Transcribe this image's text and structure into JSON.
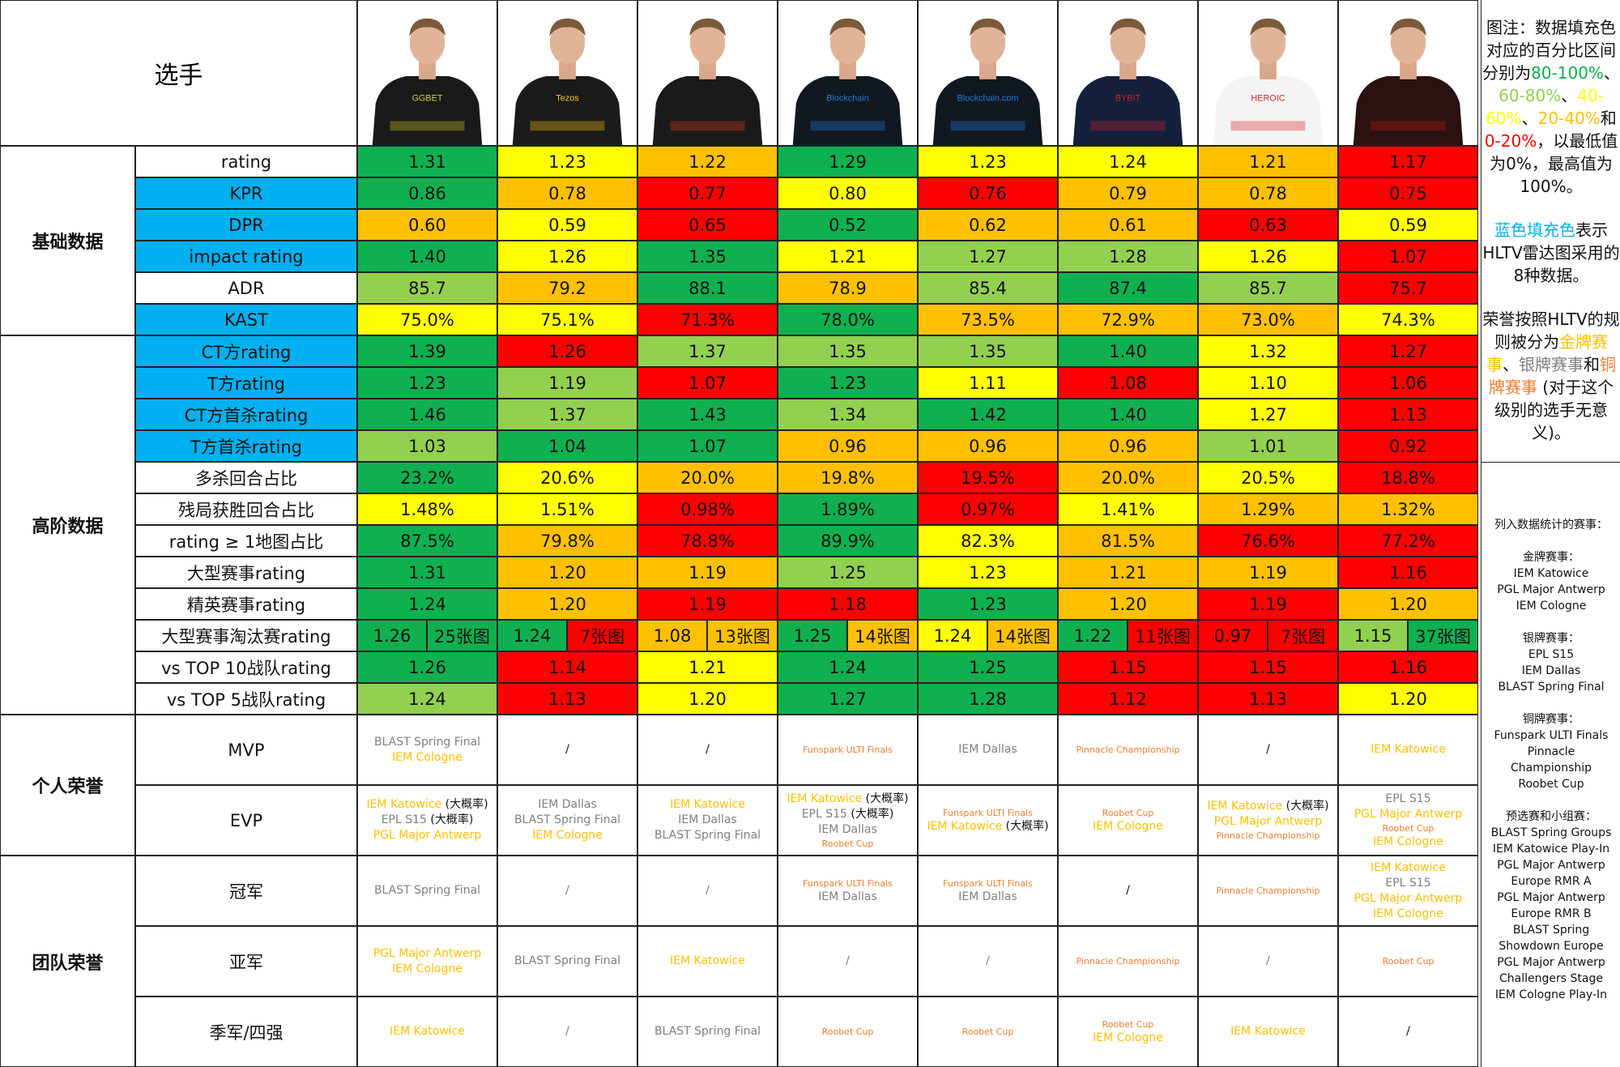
{
  "header": {
    "corner_label": "选手"
  },
  "colors": {
    "dark_green": "#0fb050",
    "light_green": "#92d050",
    "yellow": "#ffff00",
    "orange": "#ffc000",
    "red": "#ff0000",
    "blue": "#00b0f0",
    "gold": "#ffc000",
    "silver": "#808080",
    "bronze": "#ed7d31"
  },
  "players": [
    {
      "jersey": "#1a1a1a",
      "accent": "#c8d22c",
      "sponsor": "GGBET"
    },
    {
      "jersey": "#1a1a1a",
      "accent": "#f5c518",
      "sponsor": "Tezos"
    },
    {
      "jersey": "#1a1a1a",
      "accent": "#d9391e",
      "sponsor": ""
    },
    {
      "jersey": "#111822",
      "accent": "#1f7ad6",
      "sponsor": "Blockchain"
    },
    {
      "jersey": "#111822",
      "accent": "#1f7ad6",
      "sponsor": "Blockchain.com"
    },
    {
      "jersey": "#15203d",
      "accent": "#c8202a",
      "sponsor": "BYBIT"
    },
    {
      "jersey": "#f4f4f4",
      "accent": "#d42020",
      "sponsor": "HEROIC"
    },
    {
      "jersey": "#2a1212",
      "accent": "#c01818",
      "sponsor": ""
    }
  ],
  "groups": [
    {
      "label": "基础数据"
    },
    {
      "label": "高阶数据"
    },
    {
      "label": "个人荣誉"
    },
    {
      "label": "团队荣誉"
    }
  ],
  "metrics": [
    {
      "label": "rating",
      "blue": false,
      "values": [
        "1.31",
        "1.23",
        "1.22",
        "1.29",
        "1.23",
        "1.24",
        "1.21",
        "1.17"
      ],
      "tiers": [
        "dg",
        "y",
        "o",
        "dg",
        "y",
        "y",
        "o",
        "r"
      ]
    },
    {
      "label": "KPR",
      "blue": true,
      "values": [
        "0.86",
        "0.78",
        "0.77",
        "0.80",
        "0.76",
        "0.79",
        "0.78",
        "0.75"
      ],
      "tiers": [
        "dg",
        "o",
        "r",
        "y",
        "r",
        "o",
        "o",
        "r"
      ]
    },
    {
      "label": "DPR",
      "blue": true,
      "values": [
        "0.60",
        "0.59",
        "0.65",
        "0.52",
        "0.62",
        "0.61",
        "0.63",
        "0.59"
      ],
      "tiers": [
        "o",
        "y",
        "r",
        "dg",
        "o",
        "o",
        "r",
        "y"
      ]
    },
    {
      "label": "impact rating",
      "blue": true,
      "values": [
        "1.40",
        "1.26",
        "1.35",
        "1.21",
        "1.27",
        "1.28",
        "1.26",
        "1.07"
      ],
      "tiers": [
        "dg",
        "y",
        "dg",
        "y",
        "lg",
        "lg",
        "y",
        "r"
      ]
    },
    {
      "label": "ADR",
      "blue": false,
      "values": [
        "85.7",
        "79.2",
        "88.1",
        "78.9",
        "85.4",
        "87.4",
        "85.7",
        "75.7"
      ],
      "tiers": [
        "lg",
        "o",
        "dg",
        "o",
        "lg",
        "dg",
        "lg",
        "r"
      ]
    },
    {
      "label": "KAST",
      "blue": true,
      "values": [
        "75.0%",
        "75.1%",
        "71.3%",
        "78.0%",
        "73.5%",
        "72.9%",
        "73.0%",
        "74.3%"
      ],
      "tiers": [
        "y",
        "y",
        "r",
        "dg",
        "o",
        "o",
        "o",
        "y"
      ]
    },
    {
      "label": "CT方rating",
      "blue": true,
      "values": [
        "1.39",
        "1.26",
        "1.37",
        "1.35",
        "1.35",
        "1.40",
        "1.32",
        "1.27"
      ],
      "tiers": [
        "dg",
        "r",
        "lg",
        "lg",
        "lg",
        "dg",
        "y",
        "r"
      ]
    },
    {
      "label": "T方rating",
      "blue": true,
      "values": [
        "1.23",
        "1.19",
        "1.07",
        "1.23",
        "1.11",
        "1.08",
        "1.10",
        "1.06"
      ],
      "tiers": [
        "dg",
        "lg",
        "r",
        "dg",
        "y",
        "r",
        "y",
        "r"
      ]
    },
    {
      "label": "CT方首杀rating",
      "blue": true,
      "values": [
        "1.46",
        "1.37",
        "1.43",
        "1.34",
        "1.42",
        "1.40",
        "1.27",
        "1.13"
      ],
      "tiers": [
        "dg",
        "lg",
        "dg",
        "lg",
        "dg",
        "dg",
        "y",
        "r"
      ]
    },
    {
      "label": "T方首杀rating",
      "blue": true,
      "values": [
        "1.03",
        "1.04",
        "1.07",
        "0.96",
        "0.96",
        "0.96",
        "1.01",
        "0.92"
      ],
      "tiers": [
        "lg",
        "dg",
        "dg",
        "o",
        "o",
        "o",
        "lg",
        "r"
      ]
    },
    {
      "label": "多杀回合占比",
      "blue": false,
      "values": [
        "23.2%",
        "20.6%",
        "20.0%",
        "19.8%",
        "19.5%",
        "20.0%",
        "20.5%",
        "18.8%"
      ],
      "tiers": [
        "dg",
        "y",
        "o",
        "o",
        "r",
        "o",
        "y",
        "r"
      ]
    },
    {
      "label": "残局获胜回合占比",
      "blue": false,
      "values": [
        "1.48%",
        "1.51%",
        "0.98%",
        "1.89%",
        "0.97%",
        "1.41%",
        "1.29%",
        "1.32%"
      ],
      "tiers": [
        "y",
        "y",
        "r",
        "dg",
        "r",
        "y",
        "o",
        "o"
      ]
    },
    {
      "label": "rating ≥ 1地图占比",
      "blue": false,
      "values": [
        "87.5%",
        "79.8%",
        "78.8%",
        "89.9%",
        "82.3%",
        "81.5%",
        "76.6%",
        "77.2%"
      ],
      "tiers": [
        "dg",
        "o",
        "r",
        "dg",
        "y",
        "o",
        "r",
        "r"
      ]
    },
    {
      "label": "大型赛事rating",
      "blue": false,
      "values": [
        "1.31",
        "1.20",
        "1.19",
        "1.25",
        "1.23",
        "1.21",
        "1.19",
        "1.16"
      ],
      "tiers": [
        "dg",
        "o",
        "o",
        "lg",
        "y",
        "o",
        "o",
        "r"
      ]
    },
    {
      "label": "精英赛事rating",
      "blue": false,
      "values": [
        "1.24",
        "1.20",
        "1.19",
        "1.18",
        "1.23",
        "1.20",
        "1.19",
        "1.20"
      ],
      "tiers": [
        "dg",
        "o",
        "r",
        "r",
        "dg",
        "o",
        "r",
        "o"
      ]
    },
    {
      "label": "大型赛事淘汰赛rating",
      "blue": false,
      "split": true,
      "values": [
        "1.26",
        "1.24",
        "1.08",
        "1.25",
        "1.24",
        "1.22",
        "0.97",
        "1.15"
      ],
      "tiers": [
        "dg",
        "dg",
        "o",
        "dg",
        "y",
        "dg",
        "r",
        "lg"
      ],
      "maps": [
        "25张图",
        "7张图",
        "13张图",
        "14张图",
        "14张图",
        "11张图",
        "7张图",
        "37张图"
      ],
      "map_tiers": [
        "dg",
        "r",
        "o",
        "o",
        "o",
        "r",
        "r",
        "dg"
      ]
    },
    {
      "label": "vs TOP 10战队rating",
      "blue": false,
      "values": [
        "1.26",
        "1.14",
        "1.21",
        "1.24",
        "1.25",
        "1.15",
        "1.15",
        "1.16"
      ],
      "tiers": [
        "dg",
        "r",
        "y",
        "dg",
        "dg",
        "r",
        "r",
        "r"
      ]
    },
    {
      "label": "vs TOP 5战队rating",
      "blue": false,
      "values": [
        "1.24",
        "1.13",
        "1.20",
        "1.27",
        "1.28",
        "1.12",
        "1.13",
        "1.20"
      ],
      "tiers": [
        "lg",
        "r",
        "y",
        "dg",
        "dg",
        "r",
        "r",
        "y"
      ]
    }
  ],
  "honors": [
    {
      "label": "MVP",
      "cells": [
        [
          {
            "text": "BLAST Spring Final",
            "tier": "silver"
          },
          {
            "text": "IEM Cologne",
            "tier": "gold"
          }
        ],
        [
          {
            "text": "/",
            "tier": "plain"
          }
        ],
        [
          {
            "text": "/",
            "tier": "plain"
          }
        ],
        [
          {
            "text": "Funspark ULTI Finals",
            "tier": "bronze",
            "small": true
          }
        ],
        [
          {
            "text": "IEM Dallas",
            "tier": "silver"
          }
        ],
        [
          {
            "text": "Pinnacle Championship",
            "tier": "bronze",
            "small": true
          }
        ],
        [
          {
            "text": "/",
            "tier": "plain"
          }
        ],
        [
          {
            "text": "IEM Katowice",
            "tier": "gold"
          }
        ]
      ]
    },
    {
      "label": "EVP",
      "cells": [
        [
          {
            "text": "IEM Katowice",
            "tier": "gold",
            "note": " (大概率)"
          },
          {
            "text": "EPL S15",
            "tier": "silver",
            "note": " (大概率)"
          },
          {
            "text": "PGL Major Antwerp",
            "tier": "gold"
          }
        ],
        [
          {
            "text": "IEM Dallas",
            "tier": "silver"
          },
          {
            "text": "BLAST Spring Final",
            "tier": "silver"
          },
          {
            "text": "IEM Cologne",
            "tier": "gold"
          }
        ],
        [
          {
            "text": "IEM Katowice",
            "tier": "gold"
          },
          {
            "text": "IEM Dallas",
            "tier": "silver"
          },
          {
            "text": "BLAST Spring Final",
            "tier": "silver"
          }
        ],
        [
          {
            "text": "IEM Katowice",
            "tier": "gold",
            "note": " (大概率)"
          },
          {
            "text": "EPL S15",
            "tier": "silver",
            "note": " (大概率)"
          },
          {
            "text": "IEM Dallas",
            "tier": "silver"
          },
          {
            "text": "Roobet Cup",
            "tier": "bronze",
            "small": true
          }
        ],
        [
          {
            "text": "Funspark ULTI Finals",
            "tier": "bronze",
            "small": true
          },
          {
            "text": "IEM Katowice",
            "tier": "gold",
            "note": " (大概率)"
          }
        ],
        [
          {
            "text": "Roobet Cup",
            "tier": "bronze",
            "small": true
          },
          {
            "text": "IEM Cologne",
            "tier": "gold"
          }
        ],
        [
          {
            "text": "IEM Katowice",
            "tier": "gold",
            "note": " (大概率)"
          },
          {
            "text": "PGL Major Antwerp",
            "tier": "gold"
          },
          {
            "text": "Pinnacle Championship",
            "tier": "bronze",
            "small": true
          }
        ],
        [
          {
            "text": "EPL S15",
            "tier": "silver"
          },
          {
            "text": "PGL Major Antwerp",
            "tier": "gold"
          },
          {
            "text": "Roobet Cup",
            "tier": "bronze",
            "small": true
          },
          {
            "text": "IEM Cologne",
            "tier": "gold"
          }
        ]
      ]
    },
    {
      "label": "冠军",
      "cells": [
        [
          {
            "text": "BLAST Spring Final",
            "tier": "silver"
          }
        ],
        [
          {
            "text": "/",
            "tier": "silver"
          }
        ],
        [
          {
            "text": "/",
            "tier": "silver"
          }
        ],
        [
          {
            "text": "Funspark ULTI Finals",
            "tier": "bronze",
            "small": true
          },
          {
            "text": "IEM Dallas",
            "tier": "silver"
          }
        ],
        [
          {
            "text": "Funspark ULTI Finals",
            "tier": "bronze",
            "small": true
          },
          {
            "text": "IEM Dallas",
            "tier": "silver"
          }
        ],
        [
          {
            "text": "/",
            "tier": "plain"
          }
        ],
        [
          {
            "text": "Pinnacle Championship",
            "tier": "bronze",
            "small": true
          }
        ],
        [
          {
            "text": "IEM Katowice",
            "tier": "gold"
          },
          {
            "text": "EPL S15",
            "tier": "silver"
          },
          {
            "text": "PGL Major Antwerp",
            "tier": "gold"
          },
          {
            "text": "IEM Cologne",
            "tier": "gold"
          }
        ]
      ]
    },
    {
      "label": "亚军",
      "cells": [
        [
          {
            "text": "PGL Major Antwerp",
            "tier": "gold"
          },
          {
            "text": "IEM Cologne",
            "tier": "gold"
          }
        ],
        [
          {
            "text": "BLAST Spring Final",
            "tier": "silver"
          }
        ],
        [
          {
            "text": "IEM Katowice",
            "tier": "gold"
          }
        ],
        [
          {
            "text": "/",
            "tier": "silver"
          }
        ],
        [
          {
            "text": "/",
            "tier": "silver"
          }
        ],
        [
          {
            "text": "Pinnacle Championship",
            "tier": "bronze",
            "small": true
          }
        ],
        [
          {
            "text": "/",
            "tier": "silver"
          }
        ],
        [
          {
            "text": "Roobet Cup",
            "tier": "bronze",
            "small": true
          }
        ]
      ]
    },
    {
      "label": "季军/四强",
      "cells": [
        [
          {
            "text": "IEM Katowice",
            "tier": "gold"
          }
        ],
        [
          {
            "text": "/",
            "tier": "silver"
          }
        ],
        [
          {
            "text": "BLAST Spring Final",
            "tier": "silver"
          }
        ],
        [
          {
            "text": "Roobet Cup",
            "tier": "bronze",
            "small": true
          }
        ],
        [
          {
            "text": "Roobet Cup",
            "tier": "bronze",
            "small": true
          }
        ],
        [
          {
            "text": "Roobet Cup",
            "tier": "bronze",
            "small": true
          },
          {
            "text": "IEM Cologne",
            "tier": "gold"
          }
        ],
        [
          {
            "text": "IEM Katowice",
            "tier": "gold"
          }
        ],
        [
          {
            "text": "/",
            "tier": "plain"
          }
        ]
      ]
    }
  ],
  "legend": {
    "p1": [
      {
        "text": "图注：数据填充色对应的百分比区间分别为",
        "c": ""
      },
      {
        "text": "80-100%",
        "c": "dg"
      },
      {
        "text": "、",
        "c": ""
      },
      {
        "text": "60-80%",
        "c": "lg"
      },
      {
        "text": "、",
        "c": ""
      },
      {
        "text": "40-60%",
        "c": "y"
      },
      {
        "text": "、",
        "c": ""
      },
      {
        "text": "20-40%",
        "c": "o"
      },
      {
        "text": "和",
        "c": ""
      },
      {
        "text": "0-20%",
        "c": "r"
      },
      {
        "text": "，以最低值为0%，最高值为100%。",
        "c": ""
      }
    ],
    "p2": [
      {
        "text": "蓝色填充色",
        "c": "blue"
      },
      {
        "text": "表示HLTV雷达图采用的8种数据。",
        "c": ""
      }
    ],
    "p3": [
      {
        "text": "荣誉按照HLTV的规则被分为",
        "c": ""
      },
      {
        "text": "金牌赛事",
        "c": "gold"
      },
      {
        "text": "、",
        "c": ""
      },
      {
        "text": "银牌赛事",
        "c": "silver"
      },
      {
        "text": "和",
        "c": ""
      },
      {
        "text": "铜牌赛事",
        "c": "bronze"
      },
      {
        "text": " (对于这个级别的选手无意义)。",
        "c": ""
      }
    ],
    "events_title": "列入数据统计的赛事：",
    "event_blocks": [
      [
        "金牌赛事：",
        "IEM Katowice",
        "PGL Major Antwerp",
        "IEM Cologne"
      ],
      [
        "银牌赛事：",
        "EPL S15",
        "IEM Dallas",
        "BLAST Spring Final"
      ],
      [
        "铜牌赛事：",
        "Funspark ULTI Finals",
        "Pinnacle",
        "Championship",
        "Roobet Cup"
      ],
      [
        "预选赛和小组赛：",
        "BLAST Spring Groups",
        "IEM Katowice Play-In",
        "PGL Major Antwerp",
        "Europe RMR A",
        "PGL Major Antwerp",
        "Europe RMR B",
        "BLAST Spring",
        "Showdown Europe",
        "PGL Major Antwerp",
        "Challengers Stage",
        "IEM Cologne Play-In"
      ]
    ]
  }
}
